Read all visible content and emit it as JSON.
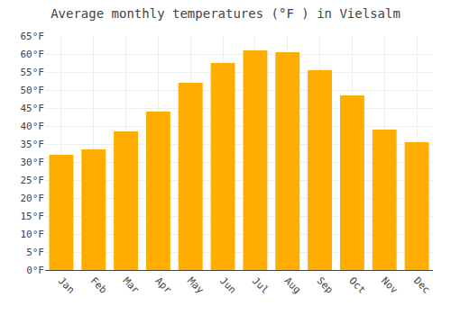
{
  "chart_data": {
    "type": "bar",
    "title": "Average monthly temperatures (°F ) in Vielsalm",
    "categories": [
      "Jan",
      "Feb",
      "Mar",
      "Apr",
      "May",
      "Jun",
      "Jul",
      "Aug",
      "Sep",
      "Oct",
      "Nov",
      "Dec"
    ],
    "values": [
      32,
      33.5,
      38.5,
      44,
      52,
      57.5,
      61,
      60.5,
      55.5,
      48.5,
      39,
      35.5
    ],
    "color": "#FFAE00",
    "ylim": [
      0,
      65
    ],
    "yticks": [
      {
        "value": 0,
        "label": "0°F"
      },
      {
        "value": 5,
        "label": "5°F"
      },
      {
        "value": 10,
        "label": "10°F"
      },
      {
        "value": 15,
        "label": "15°F"
      },
      {
        "value": 20,
        "label": "20°F"
      },
      {
        "value": 25,
        "label": "25°F"
      },
      {
        "value": 30,
        "label": "30°F"
      },
      {
        "value": 35,
        "label": "35°F"
      },
      {
        "value": 40,
        "label": "40°F"
      },
      {
        "value": 45,
        "label": "45°F"
      },
      {
        "value": 50,
        "label": "50°F"
      },
      {
        "value": 55,
        "label": "55°F"
      },
      {
        "value": 60,
        "label": "60°F"
      },
      {
        "value": 65,
        "label": "65°F"
      }
    ],
    "grid": true
  }
}
